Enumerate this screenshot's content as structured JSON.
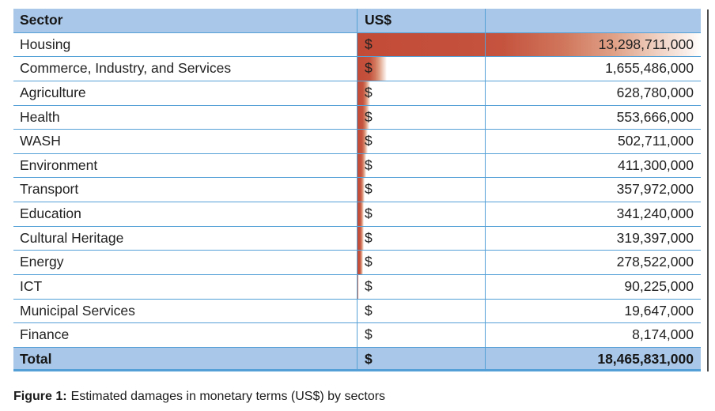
{
  "table": {
    "headers": {
      "sector": "Sector",
      "currency": "US$",
      "amount": ""
    },
    "rows": [
      {
        "sector": "Housing",
        "currency_symbol": "$",
        "amount": "13,298,711,000",
        "bar_pct": 100
      },
      {
        "sector": "Commerce, Industry, and Services",
        "currency_symbol": "$",
        "amount": "1,655,486,000",
        "bar_pct": 8.5
      },
      {
        "sector": "Agriculture",
        "currency_symbol": "$",
        "amount": "628,780,000",
        "bar_pct": 3.8
      },
      {
        "sector": "Health",
        "currency_symbol": "$",
        "amount": "553,666,000",
        "bar_pct": 3.4
      },
      {
        "sector": "WASH",
        "currency_symbol": "$",
        "amount": "502,711,000",
        "bar_pct": 3.0
      },
      {
        "sector": "Environment",
        "currency_symbol": "$",
        "amount": "411,300,000",
        "bar_pct": 2.5
      },
      {
        "sector": "Transport",
        "currency_symbol": "$",
        "amount": "357,972,000",
        "bar_pct": 2.1
      },
      {
        "sector": "Education",
        "currency_symbol": "$",
        "amount": "341,240,000",
        "bar_pct": 1.9
      },
      {
        "sector": "Cultural Heritage",
        "currency_symbol": "$",
        "amount": "319,397,000",
        "bar_pct": 1.8
      },
      {
        "sector": "Energy",
        "currency_symbol": "$",
        "amount": "278,522,000",
        "bar_pct": 1.6
      },
      {
        "sector": "ICT",
        "currency_symbol": "$",
        "amount": "90,225,000",
        "bar_pct": 0.3
      },
      {
        "sector": "Municipal Services",
        "currency_symbol": "$",
        "amount": "19,647,000",
        "bar_pct": 0.1
      },
      {
        "sector": "Finance",
        "currency_symbol": "$",
        "amount": "8,174,000",
        "bar_pct": 0.05
      }
    ],
    "total": {
      "label": "Total",
      "currency_symbol": "$",
      "amount": "18,465,831,000"
    }
  },
  "caption": {
    "prefix": "Figure 1:",
    "text": "Estimated damages in monetary terms (US$) by sectors"
  },
  "colors": {
    "header_bg": "#a9c7e8",
    "grid_line": "#54a0d6",
    "bar_red": "#c24b37",
    "text": "#222222",
    "page_edge": "#4d4d4d"
  },
  "chart_data": {
    "type": "table",
    "title": "Figure 1: Estimated damages in monetary terms (US$) by sectors",
    "columns": [
      "Sector",
      "US$"
    ],
    "rows": [
      [
        "Housing",
        13298711000
      ],
      [
        "Commerce, Industry, and Services",
        1655486000
      ],
      [
        "Agriculture",
        628780000
      ],
      [
        "Health",
        553666000
      ],
      [
        "WASH",
        502711000
      ],
      [
        "Environment",
        411300000
      ],
      [
        "Transport",
        357972000
      ],
      [
        "Education",
        341240000
      ],
      [
        "Cultural Heritage",
        319397000
      ],
      [
        "Energy",
        278522000
      ],
      [
        "ICT",
        90225000
      ],
      [
        "Municipal Services",
        19647000
      ],
      [
        "Finance",
        8174000
      ]
    ],
    "total": [
      "Total",
      18465831000
    ],
    "bar_overlay": {
      "style": "gradient-data-bars",
      "color": "#c24b37",
      "max_value": 13298711000,
      "bar_pct_of_track": [
        100,
        8.5,
        3.8,
        3.4,
        3.0,
        2.5,
        2.1,
        1.9,
        1.8,
        1.6,
        0.3,
        0.1,
        0.05
      ]
    },
    "legend_position": "none",
    "grid": true
  }
}
